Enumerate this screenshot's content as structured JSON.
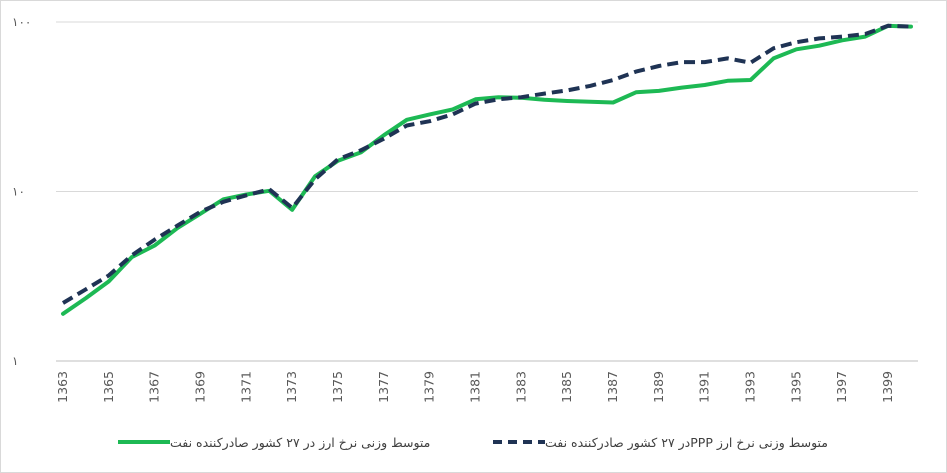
{
  "chart_data": {
    "type": "line",
    "title": "",
    "xlabel": "",
    "ylabel": "",
    "y_scale": "log",
    "ylim": [
      1,
      100
    ],
    "y_tick_labels": [
      "۱",
      "۱۰",
      "۱۰۰"
    ],
    "x": [
      1363,
      1364,
      1365,
      1366,
      1367,
      1368,
      1369,
      1370,
      1371,
      1372,
      1373,
      1374,
      1375,
      1376,
      1377,
      1378,
      1379,
      1380,
      1381,
      1382,
      1383,
      1384,
      1385,
      1386,
      1387,
      1388,
      1389,
      1390,
      1391,
      1392,
      1393,
      1394,
      1395,
      1396,
      1397,
      1398,
      1399,
      1400
    ],
    "x_tick_labels": [
      "1363",
      "1365",
      "1367",
      "1369",
      "1371",
      "1373",
      "1375",
      "1377",
      "1379",
      "1381",
      "1383",
      "1385",
      "1387",
      "1389",
      "1391",
      "1393",
      "1395",
      "1397",
      "1399"
    ],
    "grid": {
      "horizontal": true,
      "vertical": false
    },
    "legend_position": "bottom",
    "series": [
      {
        "name": "متوسط وزنی نرخ ارز در ۲۷ کشور صادرکننده نفت",
        "color": "#1db954",
        "style": "solid",
        "values": [
          1.9,
          2.35,
          2.95,
          4.1,
          4.8,
          6.1,
          7.4,
          9.0,
          9.6,
          10.1,
          7.8,
          12.3,
          15.2,
          17.0,
          21.5,
          26.5,
          28.5,
          30.5,
          35.0,
          36.0,
          35.7,
          34.8,
          34.2,
          33.8,
          33.5,
          38.5,
          39.2,
          41.0,
          42.5,
          45.0,
          45.5,
          61.0,
          69.0,
          72.5,
          78.0,
          82.0,
          95.0,
          94.0
        ]
      },
      {
        "name": "متوسط وزنی نرخ ارز PPPدر ۲۷ کشور صادرکننده نفت",
        "color": "#1f3354",
        "style": "dashed",
        "values": [
          2.2,
          2.65,
          3.2,
          4.2,
          5.2,
          6.3,
          7.6,
          8.7,
          9.5,
          10.3,
          8.0,
          11.8,
          15.5,
          17.5,
          20.5,
          24.5,
          26.0,
          28.5,
          33.0,
          35.0,
          36.0,
          37.8,
          39.5,
          42.0,
          45.5,
          51.0,
          55.0,
          58.0,
          58.0,
          61.0,
          57.5,
          70.0,
          76.0,
          80.0,
          82.0,
          85.0,
          95.0,
          94.0
        ]
      }
    ]
  }
}
